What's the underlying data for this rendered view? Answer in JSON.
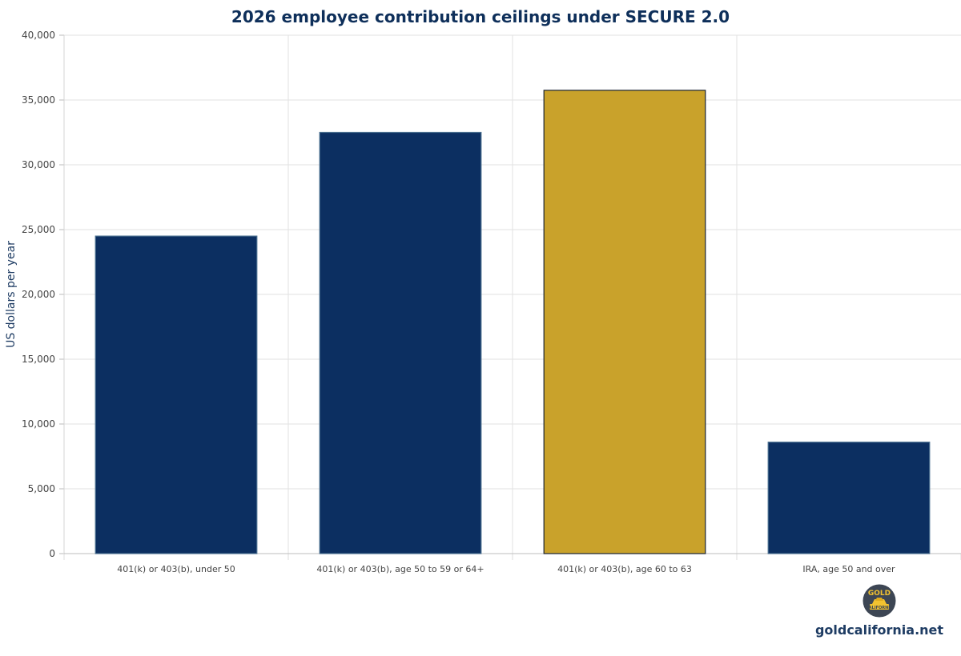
{
  "chart_data": {
    "type": "bar",
    "title": "2026 employee contribution ceilings under SECURE 2.0",
    "xlabel": "",
    "ylabel": "US dollars per year",
    "categories": [
      "401(k) or 403(b), under 50",
      "401(k) or 403(b), age 50 to 59 or 64+",
      "401(k) or 403(b), age 60 to 63",
      "IRA, age 50 and over"
    ],
    "values": [
      24500,
      32500,
      35750,
      8600
    ],
    "ylim": [
      0,
      40000
    ],
    "yticks": [
      0,
      5000,
      10000,
      15000,
      20000,
      25000,
      30000,
      35000,
      40000
    ],
    "grid": true,
    "legend": "none",
    "bar_colors": [
      "#0c2f61",
      "#0c2f61",
      "#c9a22b",
      "#0c2f61"
    ],
    "bar_edge_colors": [
      "#4a6f8f",
      "#4a6f8f",
      "#1a2433",
      "#4a6f8f"
    ]
  },
  "brand": {
    "logo_top": "GOLD",
    "logo_bottom": "CALIFORNIA",
    "site": "goldcalifornia.net"
  },
  "colors": {
    "title": "#0e2f5a",
    "axis_label": "#1e3c63",
    "grid": "#e2e2e2",
    "tick_text": "#444444",
    "logo_bg": "#3d4654",
    "logo_gold": "#f2c230"
  }
}
